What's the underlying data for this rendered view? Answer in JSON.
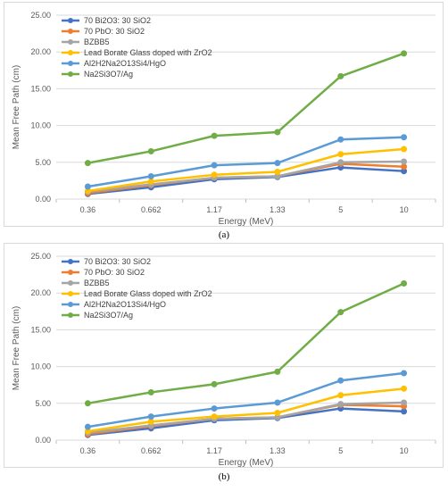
{
  "chart_data": [
    {
      "type": "line",
      "caption": "(a)",
      "xlabel": "Energy (MeV)",
      "ylabel": "Mean Free Path (cm)",
      "categories": [
        "0.36",
        "0.662",
        "1.17",
        "1.33",
        "5",
        "10"
      ],
      "ylim": [
        0,
        25
      ],
      "yticks": [
        "0.00",
        "5.00",
        "10.00",
        "15.00",
        "20.00",
        "25.00"
      ],
      "grid": true,
      "legend_position": "top-left",
      "series": [
        {
          "name": "70 Bi2O3: 30 SiO2",
          "color": "#4472c4",
          "values": [
            0.7,
            1.6,
            2.7,
            3.0,
            4.3,
            3.8
          ]
        },
        {
          "name": "70 PbO: 30 SiO2",
          "color": "#ed7d31",
          "values": [
            0.8,
            1.9,
            2.9,
            3.1,
            4.8,
            4.4
          ]
        },
        {
          "name": "BZBB5",
          "color": "#a5a5a5",
          "values": [
            1.0,
            2.0,
            2.9,
            3.1,
            5.0,
            5.1
          ]
        },
        {
          "name": "Lead Borate Glass doped with ZrO2",
          "color": "#ffc000",
          "values": [
            1.1,
            2.4,
            3.3,
            3.7,
            6.1,
            6.8
          ]
        },
        {
          "name": "Al2H2Na2O13Si4/HgO",
          "color": "#5b9bd5",
          "values": [
            1.7,
            3.1,
            4.6,
            4.9,
            8.1,
            8.4
          ]
        },
        {
          "name": "Na2Si3O7/Ag",
          "color": "#70ad47",
          "values": [
            4.9,
            6.5,
            8.6,
            9.1,
            16.7,
            19.8
          ]
        }
      ]
    },
    {
      "type": "line",
      "caption": "(b)",
      "xlabel": "Energy (MeV)",
      "ylabel": "Mean Free Path (cm)",
      "categories": [
        "0.36",
        "0.662",
        "1.17",
        "1.33",
        "5",
        "10"
      ],
      "ylim": [
        0,
        25
      ],
      "yticks": [
        "0.00",
        "5.00",
        "10.00",
        "15.00",
        "20.00",
        "25.00"
      ],
      "grid": true,
      "legend_position": "top-left",
      "series": [
        {
          "name": "70 Bi2O3: 30 SiO2",
          "color": "#4472c4",
          "values": [
            0.7,
            1.6,
            2.7,
            3.0,
            4.3,
            3.9
          ]
        },
        {
          "name": "70 PbO: 30 SiO2",
          "color": "#ed7d31",
          "values": [
            0.8,
            1.9,
            2.9,
            3.1,
            4.8,
            4.6
          ]
        },
        {
          "name": "BZBB5",
          "color": "#a5a5a5",
          "values": [
            1.0,
            2.0,
            2.9,
            3.1,
            4.9,
            5.1
          ]
        },
        {
          "name": "Lead Borate Glass doped with ZrO2",
          "color": "#ffc000",
          "values": [
            1.2,
            2.5,
            3.2,
            3.7,
            6.1,
            7.0
          ]
        },
        {
          "name": "Al2H2Na2O13Si4/HgO",
          "color": "#5b9bd5",
          "values": [
            1.8,
            3.2,
            4.3,
            5.1,
            8.1,
            9.1
          ]
        },
        {
          "name": "Na2Si3O7/Ag",
          "color": "#70ad47",
          "values": [
            5.0,
            6.5,
            7.6,
            9.3,
            17.4,
            21.3
          ]
        }
      ]
    }
  ]
}
